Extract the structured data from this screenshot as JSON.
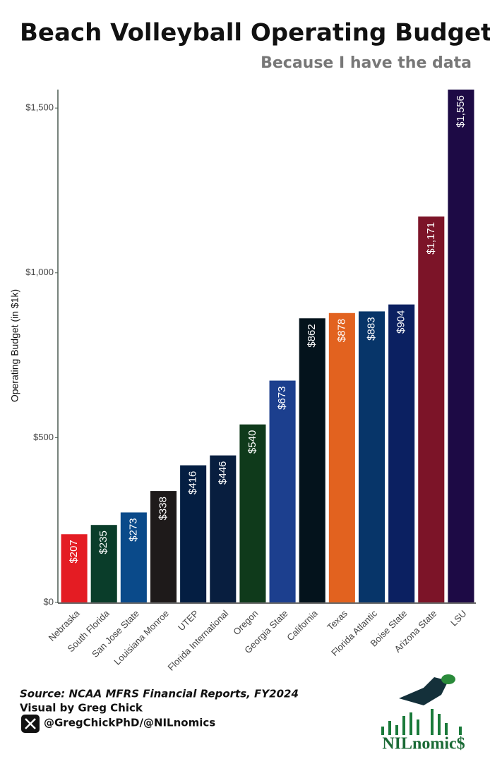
{
  "chart_data": {
    "type": "bar",
    "title": "Beach Volleyball Operating Budgets",
    "subtitle": "Because I have the data",
    "y_label": "Operating Budget (in $1k)",
    "categories": [
      "Nebraska",
      "South Florida",
      "San Jose State",
      "Louisiana Monroe",
      "UTEP",
      "Florida International",
      "Oregon",
      "Georgia State",
      "California",
      "Texas",
      "Florida Atlantic",
      "Boise State",
      "Arizona State",
      "LSU"
    ],
    "values": [
      207,
      235,
      273,
      338,
      416,
      446,
      540,
      673,
      862,
      878,
      883,
      904,
      1171,
      1556
    ],
    "value_labels": [
      "$207",
      "$235",
      "$273",
      "$338",
      "$416",
      "$446",
      "$540",
      "$673",
      "$862",
      "$878",
      "$883",
      "$904",
      "$1,171",
      "$1,556"
    ],
    "colors": [
      "#e41c23",
      "#0a3d2a",
      "#0a4a8a",
      "#1e1a1a",
      "#041e42",
      "#081e3f",
      "#0f3a1b",
      "#1c3f8e",
      "#04131c",
      "#e2621f",
      "#073569",
      "#0b2061",
      "#7c1428",
      "#1d0a45"
    ],
    "ylim": [
      0,
      1556
    ],
    "yticks": [
      {
        "value": 0,
        "label": "$0"
      },
      {
        "value": 500,
        "label": "$500"
      },
      {
        "value": 1000,
        "label": "$1,000"
      },
      {
        "value": 1500,
        "label": "$1,500"
      }
    ]
  },
  "footer": {
    "source": "Source: NCAA MFRS Financial Reports, FY2024",
    "credit": "Visual by Greg Chick",
    "handle": "@GregChickPhD/@NILnomics",
    "logo": "NILnomic$"
  }
}
